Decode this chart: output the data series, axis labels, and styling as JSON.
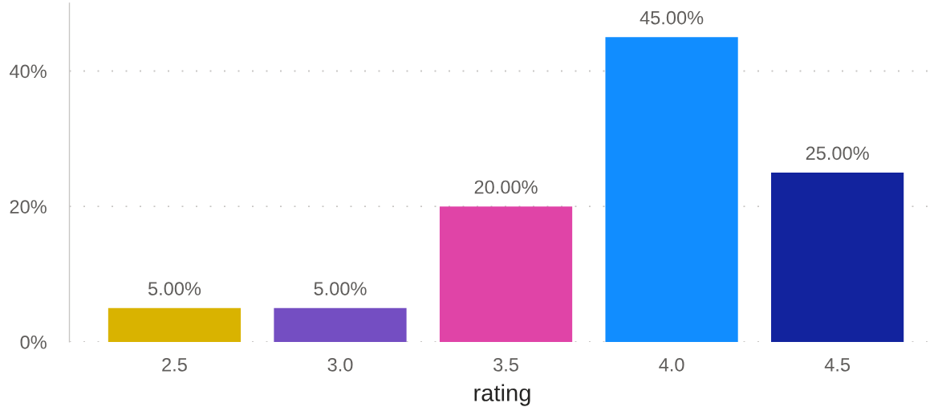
{
  "chart_data": {
    "type": "bar",
    "xlabel": "rating",
    "categories": [
      "2.5",
      "3.0",
      "3.5",
      "4.0",
      "4.5"
    ],
    "values": [
      5,
      5,
      20,
      45,
      25
    ],
    "colors": [
      "#d9b300",
      "#744ec2",
      "#e044a7",
      "#118dff",
      "#12239e"
    ],
    "value_labels": [
      "5.00%",
      "5.00%",
      "20.00%",
      "45.00%",
      "25.00%"
    ],
    "ylim": [
      0,
      50
    ],
    "yticks": [
      {
        "value": 0,
        "label": "0%"
      },
      {
        "value": 20,
        "label": "20%"
      },
      {
        "value": 40,
        "label": "40%"
      }
    ],
    "grid": "y"
  }
}
